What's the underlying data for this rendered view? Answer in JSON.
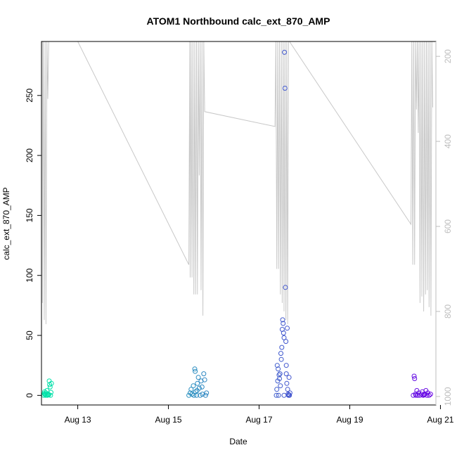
{
  "chart_data": {
    "type": "scatter",
    "title": "ATOM1 Northbound calc_ext_870_AMP",
    "xlabel": "Date",
    "ylabel": "calc_ext_870_AMP",
    "x_range_days": [
      12.2,
      20.9
    ],
    "x_ticks": [
      {
        "label": "Aug 13",
        "value": 13
      },
      {
        "label": "Aug 15",
        "value": 15
      },
      {
        "label": "Aug 17",
        "value": 17
      },
      {
        "label": "Aug 19",
        "value": 19
      },
      {
        "label": "Aug 21",
        "value": 21
      }
    ],
    "ylim": [
      -8,
      295
    ],
    "y_ticks": [
      0,
      50,
      100,
      150,
      200,
      250
    ],
    "right_axis": {
      "reversed": true,
      "ylim": [
        1020,
        165
      ],
      "ticks": [
        200,
        400,
        600,
        800,
        1000
      ],
      "color": "#bdbdbd"
    },
    "grid": false,
    "colors": {
      "points_start": "#00e5a8",
      "points_end": "#6a00e6",
      "line": "#c8c8c8"
    },
    "series": [
      {
        "kind": "points",
        "values": [
          [
            12.25,
            0.0
          ],
          [
            12.26,
            1.5
          ],
          [
            12.27,
            3.0
          ],
          [
            12.28,
            0.5
          ],
          [
            12.3,
            2.0
          ],
          [
            12.32,
            4.0
          ],
          [
            12.33,
            0.0
          ],
          [
            12.35,
            1.0
          ],
          [
            12.37,
            12.0
          ],
          [
            12.38,
            9.0
          ],
          [
            12.39,
            7.0
          ],
          [
            12.4,
            0.0
          ],
          [
            12.41,
            2.5
          ],
          [
            12.42,
            10.0
          ],
          [
            12.3,
            0.0
          ],
          [
            12.36,
            0.5
          ],
          [
            12.28,
            1.0
          ],
          [
            15.45,
            0.0
          ],
          [
            15.48,
            2.0
          ],
          [
            15.5,
            5.0
          ],
          [
            15.52,
            1.0
          ],
          [
            15.55,
            8.0
          ],
          [
            15.58,
            22.0
          ],
          [
            15.59,
            20.0
          ],
          [
            15.6,
            3.0
          ],
          [
            15.62,
            0.0
          ],
          [
            15.64,
            10.0
          ],
          [
            15.66,
            15.0
          ],
          [
            15.68,
            6.0
          ],
          [
            15.7,
            0.0
          ],
          [
            15.72,
            12.0
          ],
          [
            15.75,
            1.0
          ],
          [
            15.78,
            18.0
          ],
          [
            15.8,
            13.0
          ],
          [
            15.82,
            0.0
          ],
          [
            15.84,
            2.0
          ],
          [
            15.56,
            0.0
          ],
          [
            15.63,
            4.0
          ],
          [
            15.74,
            7.0
          ],
          [
            17.38,
            0.0
          ],
          [
            17.4,
            25.0
          ],
          [
            17.42,
            22.0
          ],
          [
            17.44,
            17.0
          ],
          [
            17.45,
            14.0
          ],
          [
            17.46,
            18.0
          ],
          [
            17.48,
            35.0
          ],
          [
            17.5,
            40.0
          ],
          [
            17.51,
            55.0
          ],
          [
            17.52,
            63.0
          ],
          [
            17.53,
            60.0
          ],
          [
            17.54,
            52.0
          ],
          [
            17.55,
            48.0
          ],
          [
            17.56,
            286.0
          ],
          [
            17.57,
            256.0
          ],
          [
            17.58,
            90.0
          ],
          [
            17.59,
            45.0
          ],
          [
            17.6,
            25.0
          ],
          [
            17.61,
            10.0
          ],
          [
            17.62,
            56.0
          ],
          [
            17.63,
            5.0
          ],
          [
            17.64,
            1.0
          ],
          [
            17.65,
            0.0
          ],
          [
            17.66,
            15.0
          ],
          [
            17.67,
            0.0
          ],
          [
            17.68,
            2.0
          ],
          [
            17.49,
            30.0
          ],
          [
            17.47,
            8.0
          ],
          [
            17.43,
            0.0
          ],
          [
            17.41,
            12.0
          ],
          [
            17.39,
            5.0
          ],
          [
            17.55,
            0.0
          ],
          [
            17.6,
            18.0
          ],
          [
            17.66,
            0.5
          ],
          [
            20.4,
            0.0
          ],
          [
            20.42,
            16.0
          ],
          [
            20.43,
            14.0
          ],
          [
            20.45,
            1.0
          ],
          [
            20.48,
            4.0
          ],
          [
            20.5,
            0.0
          ],
          [
            20.52,
            2.0
          ],
          [
            20.55,
            0.0
          ],
          [
            20.58,
            1.0
          ],
          [
            20.6,
            3.0
          ],
          [
            20.62,
            0.0
          ],
          [
            20.65,
            1.0
          ],
          [
            20.68,
            4.0
          ],
          [
            20.7,
            0.0
          ],
          [
            20.72,
            2.0
          ],
          [
            20.75,
            0.0
          ],
          [
            20.78,
            1.0
          ],
          [
            20.46,
            0.0
          ],
          [
            20.64,
            0.5
          ]
        ]
      },
      {
        "kind": "line",
        "axis": "right",
        "values": [
          [
            12.22,
            165
          ],
          [
            12.22,
            780
          ],
          [
            12.24,
            165
          ],
          [
            12.26,
            820
          ],
          [
            12.28,
            165
          ],
          [
            12.3,
            830
          ],
          [
            12.32,
            165
          ],
          [
            12.34,
            300
          ],
          [
            12.36,
            165
          ],
          [
            13.0,
            165
          ],
          [
            15.45,
            690
          ],
          [
            15.47,
            165
          ],
          [
            15.48,
            720
          ],
          [
            15.5,
            165
          ],
          [
            15.52,
            720
          ],
          [
            15.54,
            165
          ],
          [
            15.56,
            760
          ],
          [
            15.58,
            165
          ],
          [
            15.6,
            760
          ],
          [
            15.62,
            165
          ],
          [
            15.64,
            760
          ],
          [
            15.66,
            165
          ],
          [
            15.68,
            480
          ],
          [
            15.7,
            165
          ],
          [
            15.72,
            750
          ],
          [
            15.74,
            165
          ],
          [
            15.76,
            810
          ],
          [
            15.78,
            165
          ],
          [
            15.8,
            330
          ],
          [
            17.35,
            365
          ],
          [
            17.37,
            165
          ],
          [
            17.39,
            700
          ],
          [
            17.41,
            165
          ],
          [
            17.43,
            700
          ],
          [
            17.45,
            165
          ],
          [
            17.47,
            760
          ],
          [
            17.49,
            165
          ],
          [
            17.51,
            780
          ],
          [
            17.53,
            165
          ],
          [
            17.55,
            800
          ],
          [
            17.57,
            165
          ],
          [
            17.59,
            820
          ],
          [
            17.61,
            165
          ],
          [
            17.63,
            830
          ],
          [
            17.65,
            165
          ],
          [
            17.67,
            165
          ],
          [
            20.35,
            595
          ],
          [
            20.37,
            165
          ],
          [
            20.39,
            690
          ],
          [
            20.41,
            165
          ],
          [
            20.43,
            690
          ],
          [
            20.45,
            165
          ],
          [
            20.47,
            325
          ],
          [
            20.49,
            165
          ],
          [
            20.51,
            380
          ],
          [
            20.53,
            165
          ],
          [
            20.55,
            780
          ],
          [
            20.57,
            165
          ],
          [
            20.59,
            765
          ],
          [
            20.61,
            165
          ],
          [
            20.63,
            800
          ],
          [
            20.65,
            165
          ],
          [
            20.67,
            760
          ],
          [
            20.69,
            165
          ],
          [
            20.71,
            750
          ],
          [
            20.73,
            165
          ],
          [
            20.75,
            790
          ],
          [
            20.77,
            165
          ],
          [
            20.79,
            810
          ],
          [
            20.81,
            165
          ],
          [
            20.83,
            320
          ]
        ]
      }
    ]
  }
}
